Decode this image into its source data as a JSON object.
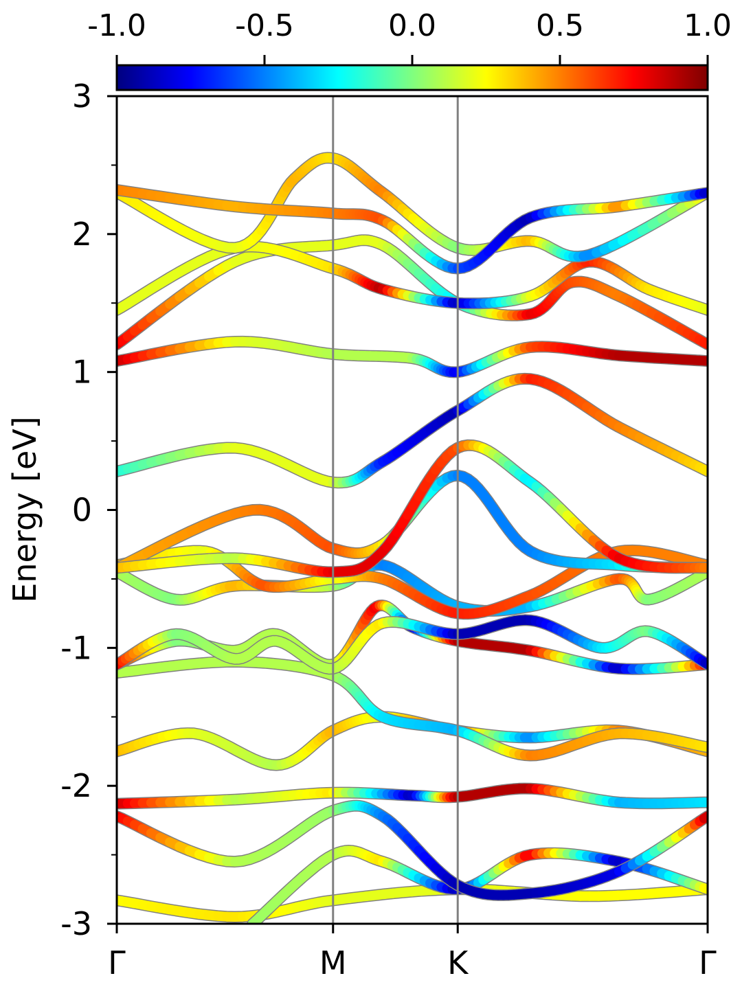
{
  "chart_data": {
    "type": "line",
    "description_free": true,
    "ylabel": "Energy [eV]",
    "xlabel": "",
    "ylim": [
      -3,
      3
    ],
    "xlim": [
      0,
      1
    ],
    "ytick_labels": [
      "3",
      "2",
      "1",
      "0",
      "-1",
      "-2",
      "-3"
    ],
    "yticks": [
      3,
      2,
      1,
      0,
      -1,
      -2,
      -3
    ],
    "yminor_ticks": [
      2.5,
      1.5,
      0.5,
      -0.5,
      -1.5,
      -2.5
    ],
    "kpoint_labels": [
      "Γ",
      "M",
      "K",
      "Γ"
    ],
    "kpoint_positions": [
      0,
      0.366,
      0.577,
      1
    ],
    "colorbar": {
      "cmap": "jet",
      "range": [
        -1,
        1
      ],
      "tick_values": [
        -1,
        -0.5,
        0,
        0.5,
        1
      ],
      "tick_labels": [
        "-1.0",
        "-0.5",
        "0.0",
        "0.5",
        "1.0"
      ],
      "location": "top"
    },
    "series": [
      {
        "points": [
          [
            0,
            -2.83
          ],
          [
            0.2,
            -2.95
          ],
          [
            0.366,
            -2.83
          ],
          [
            0.577,
            -2.75
          ],
          [
            0.8,
            -2.8
          ],
          [
            1,
            -2.75
          ]
        ],
        "colors": [
          0.25,
          0.3,
          0.2,
          0.2,
          0.25,
          0.25
        ]
      },
      {
        "points": [
          [
            0.23,
            -3.0
          ],
          [
            0.366,
            -2.5
          ],
          [
            0.45,
            -2.55
          ],
          [
            0.577,
            -2.75
          ],
          [
            0.7,
            -2.5
          ],
          [
            0.85,
            -2.55
          ],
          [
            1,
            -2.75
          ]
        ],
        "colors": [
          0.05,
          0.1,
          0.3,
          -0.9,
          0.8,
          -0.9,
          0.3
        ]
      },
      {
        "points": [
          [
            0,
            -2.22
          ],
          [
            0.2,
            -2.55
          ],
          [
            0.366,
            -2.18
          ],
          [
            0.45,
            -2.22
          ],
          [
            0.577,
            -2.72
          ],
          [
            0.7,
            -2.78
          ],
          [
            0.85,
            -2.62
          ],
          [
            1,
            -2.22
          ]
        ],
        "colors": [
          0.8,
          0.1,
          0.05,
          -0.5,
          -0.9,
          -0.9,
          -0.8,
          0.9
        ]
      },
      {
        "points": [
          [
            0,
            -2.13
          ],
          [
            0.2,
            -2.1
          ],
          [
            0.366,
            -2.05
          ],
          [
            0.5,
            -2.07
          ],
          [
            0.577,
            -2.08
          ],
          [
            0.7,
            -2.02
          ],
          [
            0.85,
            -2.12
          ],
          [
            1,
            -2.12
          ]
        ],
        "colors": [
          0.9,
          0.1,
          0.3,
          -0.9,
          0.9,
          0.9,
          -0.4,
          -0.3
        ]
      },
      {
        "points": [
          [
            0,
            -1.75
          ],
          [
            0.13,
            -1.62
          ],
          [
            0.27,
            -1.85
          ],
          [
            0.366,
            -1.6
          ],
          [
            0.45,
            -1.5
          ],
          [
            0.577,
            -1.6
          ],
          [
            0.7,
            -1.65
          ],
          [
            0.85,
            -1.6
          ],
          [
            1,
            -1.75
          ]
        ],
        "colors": [
          0.4,
          0.2,
          0.1,
          0.4,
          0.2,
          0.6,
          -0.5,
          0.5,
          0.4
        ]
      },
      {
        "points": [
          [
            0,
            -1.18
          ],
          [
            0.2,
            -1.1
          ],
          [
            0.366,
            -1.2
          ],
          [
            0.45,
            -1.5
          ],
          [
            0.577,
            -1.6
          ],
          [
            0.7,
            -1.78
          ],
          [
            0.85,
            -1.62
          ],
          [
            1,
            -1.72
          ]
        ],
        "colors": [
          0.1,
          0.1,
          0.1,
          -0.3,
          -0.4,
          0.5,
          0.4,
          0.3
        ]
      },
      {
        "points": [
          [
            0,
            -1.12
          ],
          [
            0.1,
            -0.95
          ],
          [
            0.2,
            -1.02
          ],
          [
            0.27,
            -0.9
          ],
          [
            0.366,
            -1.12
          ],
          [
            0.44,
            -0.7
          ],
          [
            0.5,
            -0.85
          ],
          [
            0.577,
            -0.95
          ],
          [
            0.7,
            -1.02
          ],
          [
            0.85,
            -1.15
          ],
          [
            1,
            -1.12
          ]
        ],
        "colors": [
          0.8,
          0.0,
          0.1,
          0.1,
          0.1,
          0.8,
          -0.9,
          0.9,
          0.9,
          -0.9,
          0.8
        ]
      },
      {
        "points": [
          [
            0,
            -1.12
          ],
          [
            0.1,
            -0.9
          ],
          [
            0.2,
            -1.08
          ],
          [
            0.27,
            -0.95
          ],
          [
            0.366,
            -1.15
          ],
          [
            0.45,
            -0.82
          ],
          [
            0.577,
            -0.9
          ],
          [
            0.7,
            -0.8
          ],
          [
            0.82,
            -1.0
          ],
          [
            0.9,
            -0.88
          ],
          [
            1,
            -1.12
          ]
        ],
        "colors": [
          0.8,
          0.0,
          0.1,
          0.1,
          0.1,
          0.3,
          -0.9,
          -0.9,
          -0.3,
          0.0,
          -0.9
        ]
      },
      {
        "points": [
          [
            0,
            -0.45
          ],
          [
            0.1,
            -0.65
          ],
          [
            0.2,
            -0.55
          ],
          [
            0.366,
            -0.55
          ],
          [
            0.45,
            -0.4
          ],
          [
            0.577,
            -0.7
          ],
          [
            0.7,
            -0.7
          ],
          [
            0.85,
            -0.5
          ],
          [
            0.9,
            -0.65
          ],
          [
            1,
            -0.45
          ]
        ],
        "colors": [
          0.1,
          0.0,
          0.4,
          0.1,
          -0.5,
          -0.4,
          -0.4,
          0.6,
          0.0,
          0.1
        ]
      },
      {
        "points": [
          [
            0,
            -0.4
          ],
          [
            0.15,
            -0.3
          ],
          [
            0.25,
            -0.55
          ],
          [
            0.366,
            -0.5
          ],
          [
            0.45,
            -0.5
          ],
          [
            0.577,
            -0.75
          ],
          [
            0.7,
            -0.62
          ],
          [
            0.85,
            -0.3
          ],
          [
            1,
            -0.4
          ]
        ],
        "colors": [
          0.4,
          0.2,
          0.6,
          0.2,
          0.5,
          0.7,
          0.6,
          0.5,
          0.5
        ]
      },
      {
        "points": [
          [
            0,
            -0.42
          ],
          [
            0.23,
            0.0
          ],
          [
            0.366,
            -0.28
          ],
          [
            0.45,
            -0.25
          ],
          [
            0.577,
            0.25
          ],
          [
            0.7,
            -0.3
          ],
          [
            0.85,
            -0.4
          ],
          [
            1,
            -0.42
          ]
        ],
        "colors": [
          0.4,
          0.5,
          0.6,
          0.3,
          -0.5,
          -0.5,
          -0.3,
          0.5
        ]
      },
      {
        "points": [
          [
            0,
            -0.42
          ],
          [
            0.2,
            -0.35
          ],
          [
            0.366,
            -0.45
          ],
          [
            0.45,
            -0.3
          ],
          [
            0.577,
            0.45
          ],
          [
            0.7,
            0.2
          ],
          [
            0.85,
            -0.35
          ],
          [
            1,
            -0.42
          ]
        ],
        "colors": [
          0.4,
          0.1,
          0.8,
          0.8,
          0.6,
          -0.3,
          0.8,
          0.5
        ]
      },
      {
        "points": [
          [
            0,
            0.28
          ],
          [
            0.2,
            0.45
          ],
          [
            0.366,
            0.2
          ],
          [
            0.45,
            0.35
          ],
          [
            0.577,
            0.72
          ],
          [
            0.7,
            0.95
          ],
          [
            0.85,
            0.6
          ],
          [
            1,
            0.28
          ]
        ],
        "colors": [
          -0.2,
          0.2,
          0.2,
          -0.7,
          -0.9,
          0.7,
          0.5,
          0.3
        ]
      },
      {
        "points": [
          [
            0,
            1.08
          ],
          [
            0.2,
            1.22
          ],
          [
            0.366,
            1.13
          ],
          [
            0.5,
            1.1
          ],
          [
            0.577,
            1.0
          ],
          [
            0.7,
            1.18
          ],
          [
            0.85,
            1.12
          ],
          [
            1,
            1.08
          ]
        ],
        "colors": [
          0.9,
          0.2,
          0.1,
          0.1,
          -0.8,
          0.6,
          0.9,
          0.9
        ]
      },
      {
        "points": [
          [
            0,
            1.2
          ],
          [
            0.2,
            1.8
          ],
          [
            0.366,
            1.92
          ],
          [
            0.45,
            1.92
          ],
          [
            0.577,
            1.5
          ],
          [
            0.7,
            1.42
          ],
          [
            0.77,
            1.65
          ],
          [
            0.85,
            1.55
          ],
          [
            1,
            1.2
          ]
        ],
        "colors": [
          0.8,
          0.2,
          0.2,
          0.2,
          -0.3,
          0.8,
          0.6,
          0.5,
          0.7
        ]
      },
      {
        "points": [
          [
            0,
            1.45
          ],
          [
            0.2,
            1.9
          ],
          [
            0.366,
            1.75
          ],
          [
            0.45,
            1.6
          ],
          [
            0.577,
            1.5
          ],
          [
            0.7,
            1.55
          ],
          [
            0.8,
            1.8
          ],
          [
            0.9,
            1.6
          ],
          [
            1,
            1.45
          ]
        ],
        "colors": [
          0.2,
          0.2,
          0.3,
          0.9,
          -0.9,
          0.2,
          0.7,
          0.3,
          0.2
        ]
      },
      {
        "points": [
          [
            0,
            2.3
          ],
          [
            0.2,
            1.9
          ],
          [
            0.3,
            2.4
          ],
          [
            0.366,
            2.55
          ],
          [
            0.45,
            2.3
          ],
          [
            0.577,
            1.9
          ],
          [
            0.7,
            1.95
          ],
          [
            0.8,
            1.85
          ],
          [
            1,
            2.3
          ]
        ],
        "colors": [
          0.3,
          0.2,
          0.4,
          0.3,
          0.5,
          0.0,
          0.4,
          -0.5,
          0.3
        ]
      },
      {
        "points": [
          [
            0,
            2.32
          ],
          [
            0.2,
            2.2
          ],
          [
            0.366,
            2.15
          ],
          [
            0.45,
            2.1
          ],
          [
            0.577,
            1.75
          ],
          [
            0.7,
            2.12
          ],
          [
            0.85,
            2.2
          ],
          [
            1,
            2.3
          ]
        ],
        "colors": [
          0.5,
          0.4,
          0.5,
          0.6,
          -0.6,
          -0.9,
          0.5,
          -0.9
        ]
      }
    ]
  }
}
